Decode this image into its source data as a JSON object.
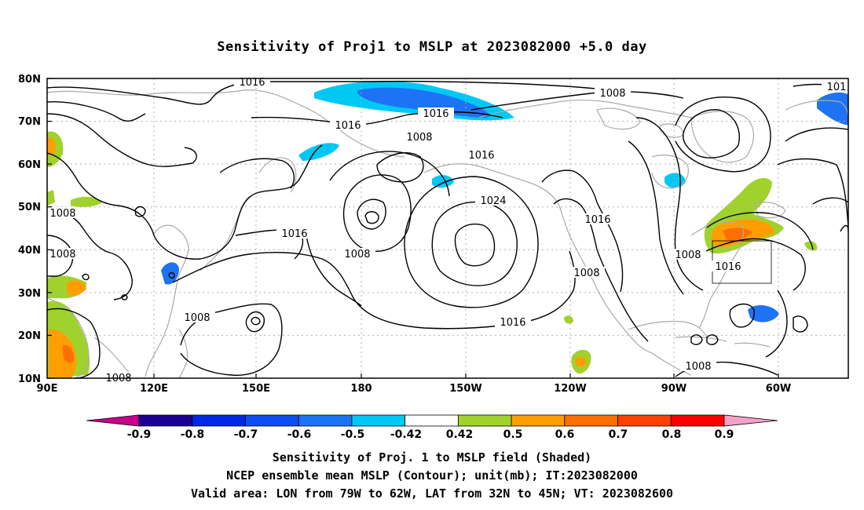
{
  "title": "Sensitivity of Proj1 to MSLP at 2023082000 +5.0 day",
  "lat_labels": [
    "80N",
    "70N",
    "60N",
    "50N",
    "40N",
    "30N",
    "20N",
    "10N"
  ],
  "lon_labels": [
    "90E",
    "120E",
    "150E",
    "180",
    "150W",
    "120W",
    "90W",
    "60W"
  ],
  "contour_labels": [
    "1016",
    "1008",
    "1016",
    "1008",
    "1016",
    "1008",
    "1016",
    "1024",
    "1016",
    "1008",
    "1008",
    "1008",
    "1016",
    "1008",
    "1016",
    "1008",
    "1008",
    "1016",
    "1008",
    "101"
  ],
  "colorbar": {
    "labels": [
      "-0.9",
      "-0.8",
      "-0.7",
      "-0.6",
      "-0.5",
      "-0.42",
      "0.42",
      "0.5",
      "0.6",
      "0.7",
      "0.8",
      "0.9"
    ],
    "colors": [
      "#1a0091",
      "#0027e6",
      "#0f4df0",
      "#1e73f5",
      "#00c8f5",
      "#ffffff",
      "#a0d22d",
      "#ff9e00",
      "#ff6e00",
      "#ff4000",
      "#ff0000"
    ],
    "under_color": "#c8008c",
    "over_color": "#f5a0c8"
  },
  "captions": {
    "line1": "Sensitivity of Proj. 1 to MSLP field (Shaded)",
    "line2": "NCEP ensemble mean MSLP (Contour); unit(mb); IT:2023082000",
    "line3": "Valid area: LON from 79W to 62W, LAT from 32N to 45N; VT: 2023082600"
  },
  "valid_area": {
    "lon": [
      -79,
      -62
    ],
    "lat": [
      32,
      45
    ]
  }
}
